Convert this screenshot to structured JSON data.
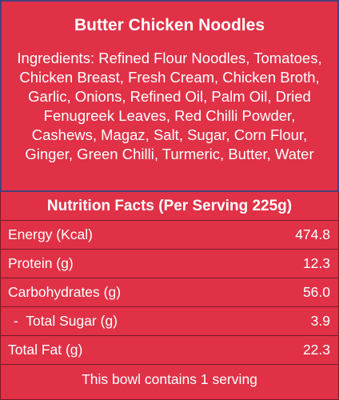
{
  "title": "Butter Chicken Noodles",
  "ingredients": "Ingredients: Refined Flour Noodles, Tomatoes, Chicken Breast, Fresh Cream, Chicken Broth, Garlic, Onions, Refined Oil, Palm Oil, Dried Fenugreek Leaves, Red Chilli Powder, Cashews, Magaz, Salt, Sugar, Corn Flour, Ginger, Green Chilli, Turmeric, Butter, Water",
  "nutrition": {
    "heading": "Nutrition Facts (Per Serving 225g)",
    "rows": [
      {
        "name": "Energy (Kcal)",
        "value": "474.8"
      },
      {
        "name": "Protein (g)",
        "value": "12.3"
      },
      {
        "name": "Carbohydrates (g)",
        "value": "56.0"
      },
      {
        "name": "-  Total Sugar (g)",
        "value": "3.9"
      },
      {
        "name": "Total Fat (g)",
        "value": "22.3"
      }
    ],
    "footer": "This bowl contains 1 serving"
  },
  "colors": {
    "background": "#e03147",
    "text": "#ffffff",
    "top_border": "#4a3f7a",
    "row_divider": "#7a1a25"
  }
}
